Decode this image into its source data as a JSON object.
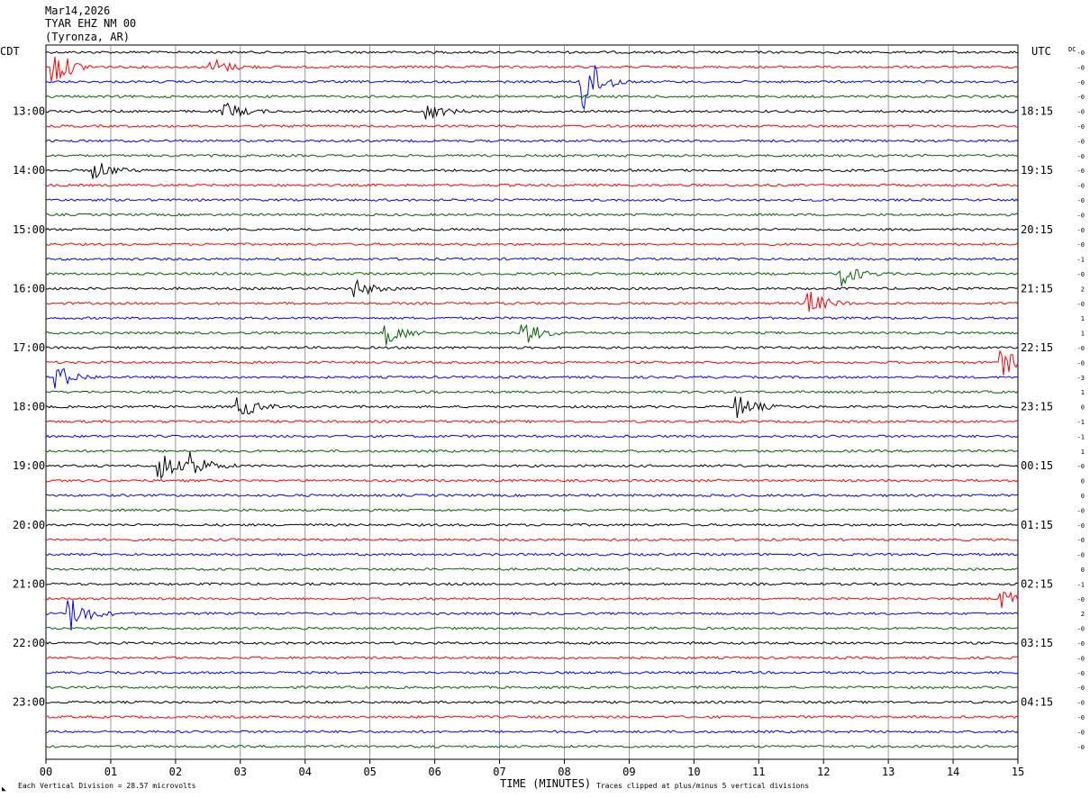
{
  "header": {
    "date": "Mar14,2026",
    "station": "TYAR EHZ NM 00",
    "location": "(Tyronza, AR)"
  },
  "left_axis_label": "CDT",
  "right_axis_label": "UTC",
  "dc_label": "DC",
  "footer": {
    "scale_text": "Each Vertical Division =   28.57 microvolts",
    "clip_text": "Traces clipped at plus/minus 5 vertical divisions",
    "corner_mark": "◣"
  },
  "colors": {
    "trace_cycle": [
      "#000000",
      "#ff0000",
      "#0000ff",
      "#006400"
    ],
    "grid": "#808080"
  },
  "chart_data": {
    "type": "helicorder",
    "xlabel": "TIME (MINUTES)",
    "x_ticks": [
      "00",
      "01",
      "02",
      "03",
      "04",
      "05",
      "06",
      "07",
      "08",
      "09",
      "10",
      "11",
      "12",
      "13",
      "14",
      "15"
    ],
    "xlim": [
      0,
      15
    ],
    "minutes_per_line": 15,
    "line_count": 48,
    "local_hour_labels": [
      "13:00",
      "14:00",
      "15:00",
      "16:00",
      "17:00",
      "18:00",
      "19:00",
      "20:00",
      "21:00",
      "22:00",
      "23:00"
    ],
    "utc_hour_labels": [
      "18:15",
      "19:15",
      "20:15",
      "21:15",
      "22:15",
      "23:15",
      "00:15",
      "01:15",
      "02:15",
      "03:15",
      "04:15"
    ],
    "dc_offsets": [
      "-0",
      "-0",
      "-0",
      "-0",
      "-0",
      "-0",
      "-0",
      "-0",
      "-0",
      "-0",
      "-0",
      "-0",
      "-0",
      "-0",
      "-1",
      "-0",
      "2",
      "-0",
      "1",
      "1",
      "-0",
      "-0",
      "-3",
      "1",
      "0",
      "-1",
      "-1",
      "1",
      "-0",
      "0",
      "0",
      "-0",
      "-0",
      "-0",
      "-0",
      "0",
      "-1",
      "-0",
      "2",
      "-0",
      "-0",
      "-0",
      "-0",
      "-0",
      "-0",
      "-0",
      "-0",
      "-0"
    ],
    "events": [
      {
        "line": 1,
        "minute": 0.15,
        "amplitude": 6
      },
      {
        "line": 1,
        "minute": 2.6,
        "amplitude": 3
      },
      {
        "line": 2,
        "minute": 8.3,
        "amplitude": 12
      },
      {
        "line": 4,
        "minute": 2.8,
        "amplitude": 3
      },
      {
        "line": 4,
        "minute": 5.9,
        "amplitude": 3
      },
      {
        "line": 8,
        "minute": 0.8,
        "amplitude": 3
      },
      {
        "line": 15,
        "minute": 12.3,
        "amplitude": 4
      },
      {
        "line": 16,
        "minute": 4.8,
        "amplitude": 3
      },
      {
        "line": 17,
        "minute": 11.8,
        "amplitude": 4
      },
      {
        "line": 19,
        "minute": 5.3,
        "amplitude": 4
      },
      {
        "line": 19,
        "minute": 7.4,
        "amplitude": 4
      },
      {
        "line": 21,
        "minute": 14.8,
        "amplitude": 4
      },
      {
        "line": 22,
        "minute": 0.2,
        "amplitude": 4
      },
      {
        "line": 24,
        "minute": 3.0,
        "amplitude": 4
      },
      {
        "line": 24,
        "minute": 10.7,
        "amplitude": 4
      },
      {
        "line": 28,
        "minute": 1.8,
        "amplitude": 5
      },
      {
        "line": 28,
        "minute": 2.3,
        "amplitude": 4
      },
      {
        "line": 38,
        "minute": 0.4,
        "amplitude": 6
      },
      {
        "line": 37,
        "minute": 14.8,
        "amplitude": 3
      }
    ]
  }
}
